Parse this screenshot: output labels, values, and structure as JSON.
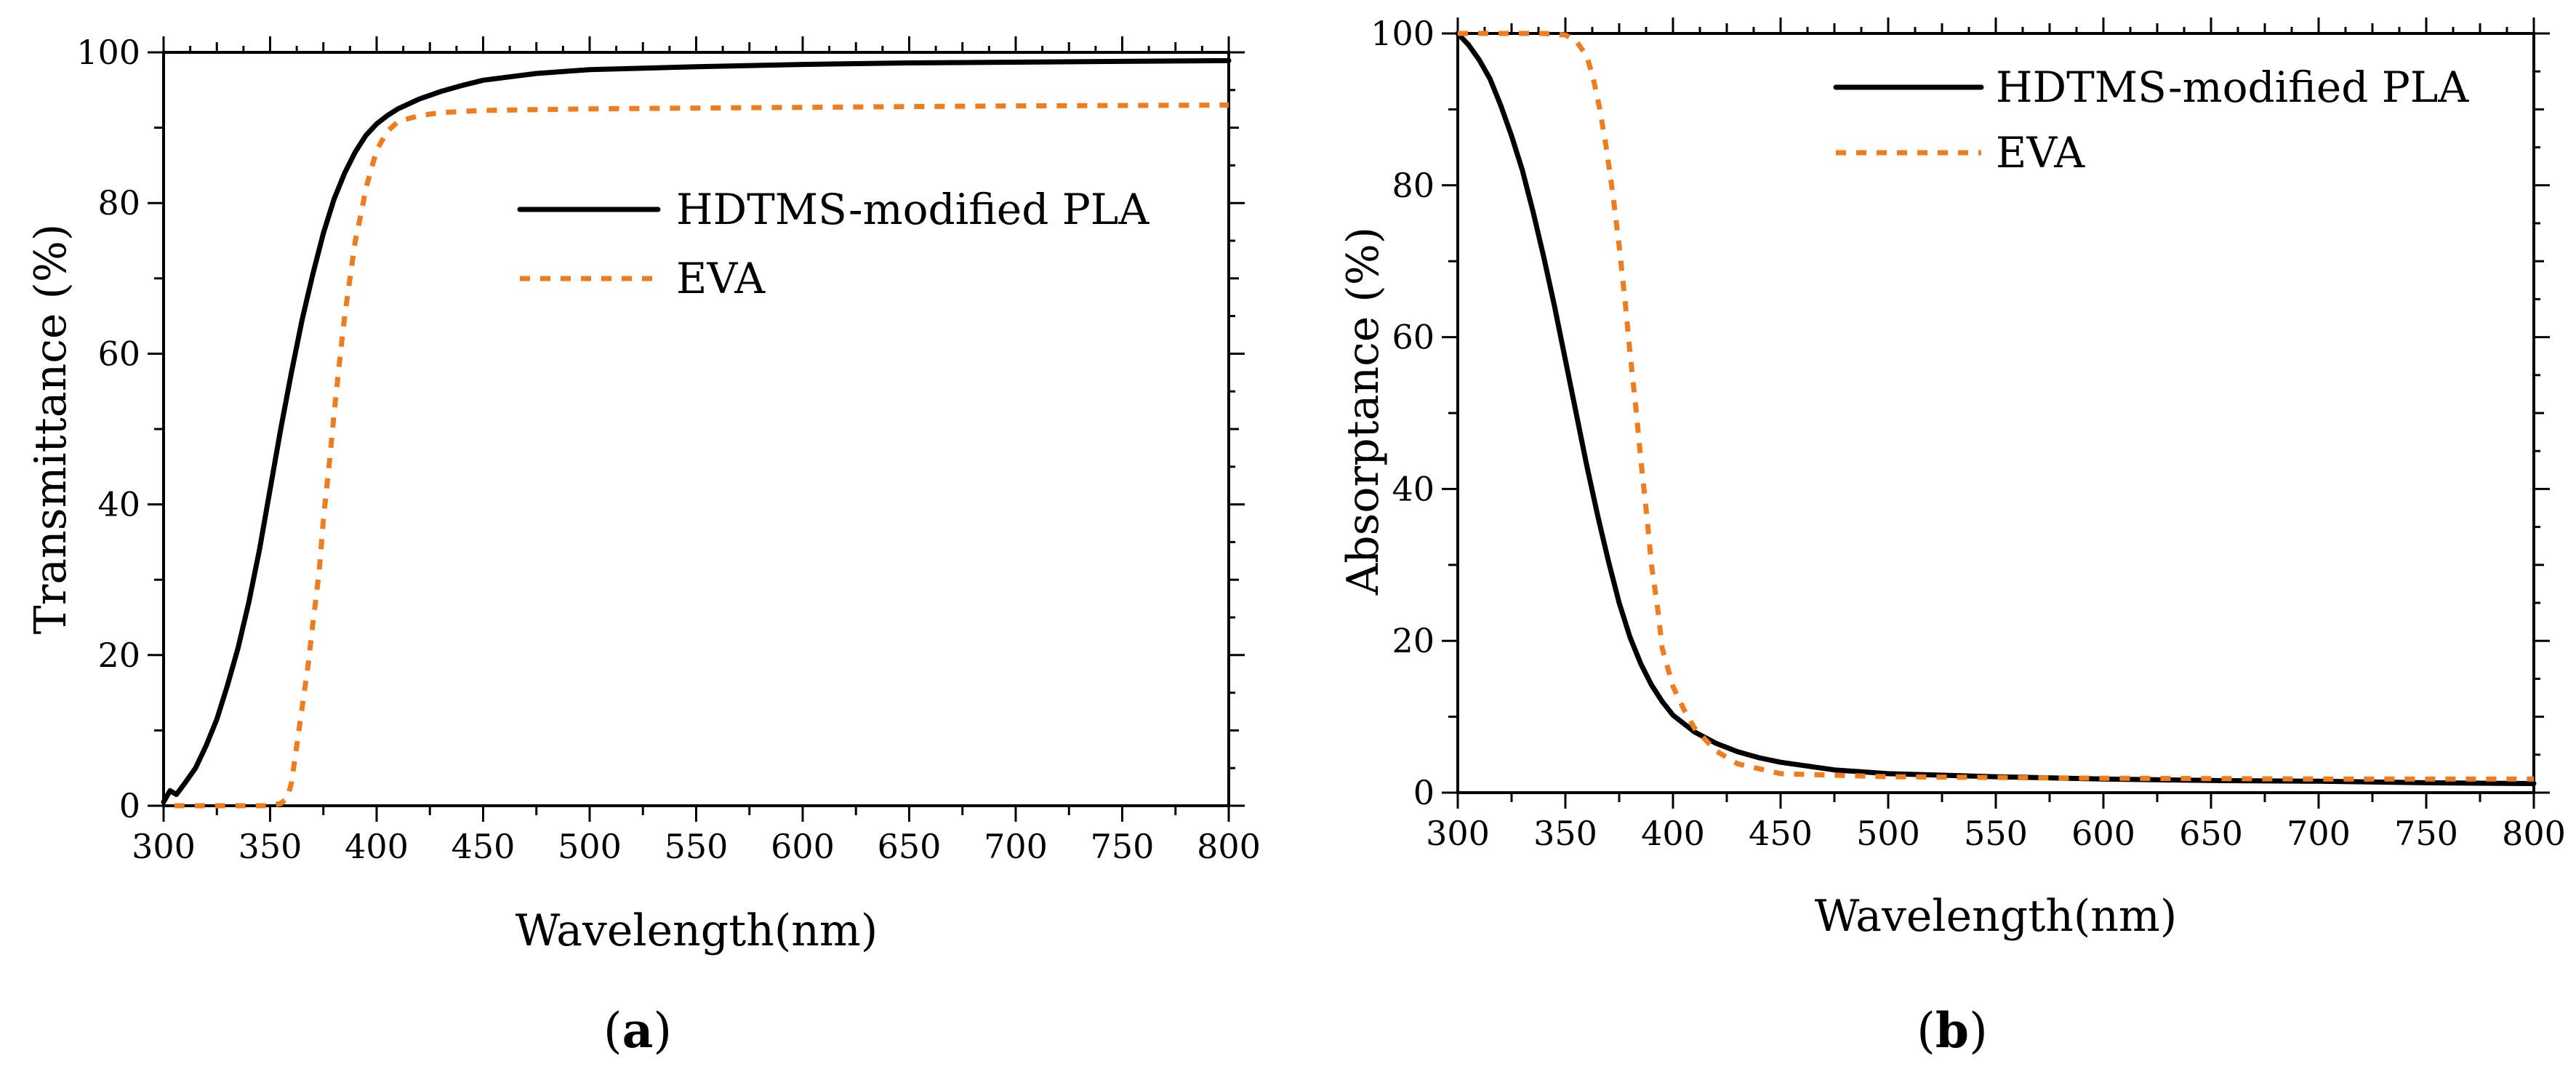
{
  "chart_data": [
    {
      "type": "line",
      "panel_label": "a",
      "xlabel": "Wavelength(nm)",
      "ylabel": "Transmittance (%)",
      "xlim": [
        300,
        800
      ],
      "ylim": [
        0,
        100
      ],
      "xticks": [
        300,
        350,
        400,
        450,
        500,
        550,
        600,
        650,
        700,
        750,
        800
      ],
      "yticks": [
        0,
        20,
        40,
        60,
        80,
        100
      ],
      "legend_position": "center-right",
      "series": [
        {
          "name": "HDTMS-modified PLA",
          "color": "#000000",
          "style": "solid",
          "x": [
            300,
            303,
            306,
            310,
            315,
            320,
            325,
            330,
            335,
            340,
            345,
            350,
            355,
            360,
            365,
            370,
            375,
            380,
            385,
            390,
            395,
            400,
            405,
            410,
            420,
            430,
            440,
            450,
            475,
            500,
            550,
            600,
            650,
            700,
            750,
            800
          ],
          "y": [
            0.5,
            2.0,
            1.5,
            3.0,
            5.0,
            8.0,
            11.5,
            16.0,
            21.0,
            27.0,
            34.0,
            42.0,
            50.0,
            57.5,
            64.5,
            70.5,
            76.0,
            80.5,
            84.0,
            86.8,
            89.0,
            90.5,
            91.6,
            92.5,
            93.8,
            94.8,
            95.6,
            96.3,
            97.2,
            97.7,
            98.1,
            98.4,
            98.6,
            98.7,
            98.8,
            98.9
          ]
        },
        {
          "name": "EVA",
          "color": "#ee7d1f",
          "style": "dashed",
          "x": [
            305,
            320,
            340,
            350,
            355,
            358,
            360,
            362,
            365,
            368,
            370,
            373,
            375,
            378,
            380,
            383,
            385,
            388,
            390,
            393,
            395,
            398,
            400,
            405,
            410,
            420,
            430,
            450,
            500,
            600,
            700,
            800
          ],
          "y": [
            0,
            0,
            0,
            0,
            0.3,
            1.0,
            3.0,
            7.0,
            13.0,
            19.0,
            24.0,
            31.0,
            38.0,
            46.0,
            52.0,
            60.0,
            65.0,
            71.0,
            75.0,
            79.0,
            82.0,
            85.0,
            87.0,
            89.5,
            90.8,
            91.6,
            92.0,
            92.3,
            92.5,
            92.7,
            92.9,
            93.0
          ]
        }
      ]
    },
    {
      "type": "line",
      "panel_label": "b",
      "xlabel": "Wavelength(nm)",
      "ylabel": "Absorptance (%)",
      "xlim": [
        300,
        800
      ],
      "ylim": [
        0,
        100
      ],
      "xticks": [
        300,
        350,
        400,
        450,
        500,
        550,
        600,
        650,
        700,
        750,
        800
      ],
      "yticks": [
        0,
        20,
        40,
        60,
        80,
        100
      ],
      "legend_position": "top-right",
      "series": [
        {
          "name": "HDTMS-modified PLA",
          "color": "#000000",
          "style": "solid",
          "x": [
            300,
            305,
            310,
            315,
            320,
            325,
            330,
            335,
            340,
            345,
            350,
            355,
            360,
            365,
            370,
            375,
            380,
            385,
            390,
            395,
            400,
            410,
            420,
            430,
            440,
            450,
            475,
            500,
            550,
            600,
            650,
            700,
            750,
            800
          ],
          "y": [
            100,
            98.5,
            96.5,
            94.0,
            90.5,
            86.5,
            82.0,
            76.5,
            70.5,
            64.0,
            57.0,
            50.0,
            43.0,
            36.5,
            30.5,
            25.0,
            20.5,
            17.0,
            14.2,
            12.0,
            10.2,
            8.0,
            6.5,
            5.4,
            4.6,
            4.0,
            3.0,
            2.5,
            2.1,
            1.8,
            1.6,
            1.5,
            1.3,
            1.2
          ]
        },
        {
          "name": "EVA",
          "color": "#ee7d1f",
          "style": "dashed",
          "x": [
            300,
            320,
            340,
            350,
            355,
            360,
            363,
            366,
            369,
            372,
            375,
            378,
            380,
            383,
            385,
            388,
            390,
            393,
            395,
            398,
            400,
            405,
            410,
            420,
            430,
            450,
            500,
            600,
            700,
            800
          ],
          "y": [
            100,
            100,
            100,
            99.8,
            99.0,
            97.0,
            94.0,
            90.0,
            85.0,
            79.0,
            72.0,
            64.0,
            58.0,
            50.0,
            44.0,
            36.0,
            30.0,
            24.0,
            19.0,
            16.0,
            14.0,
            11.0,
            8.5,
            5.5,
            3.8,
            2.5,
            2.1,
            1.9,
            1.8,
            1.8
          ]
        }
      ]
    }
  ]
}
